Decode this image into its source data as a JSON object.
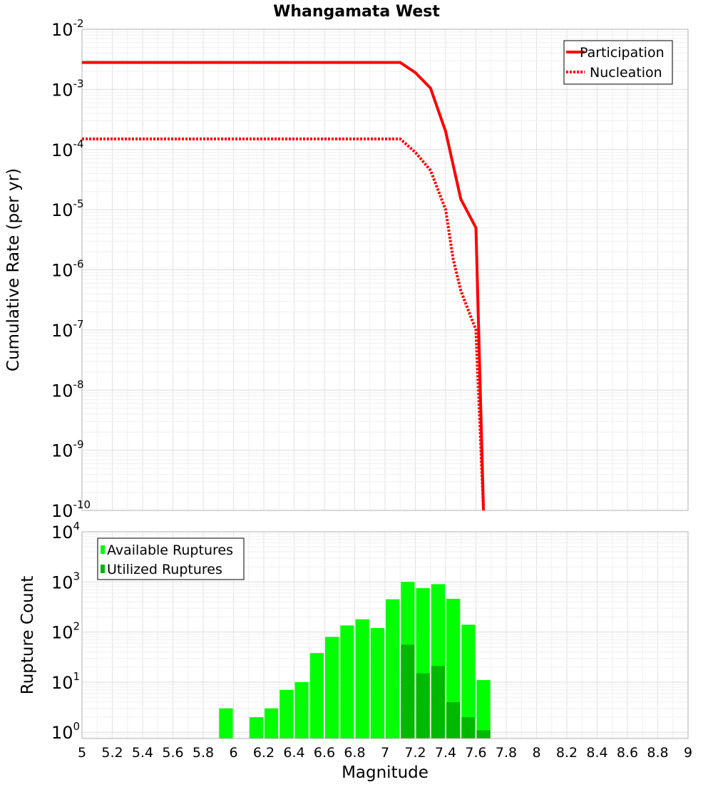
{
  "chart_data": [
    {
      "type": "line",
      "title": "Whangamata West",
      "xlabel": "",
      "ylabel": "Cumulative Rate (per yr)",
      "yscale": "log",
      "xlim": [
        5,
        9
      ],
      "ylim": [
        1e-10,
        0.01
      ],
      "grid": true,
      "legend_position": "top-right",
      "y_tick_labels": [
        {
          "base": "10",
          "exp": "-10",
          "value": 1e-10
        },
        {
          "base": "10",
          "exp": "-9",
          "value": 1e-09
        },
        {
          "base": "10",
          "exp": "-8",
          "value": 1e-08
        },
        {
          "base": "10",
          "exp": "-7",
          "value": 1e-07
        },
        {
          "base": "10",
          "exp": "-6",
          "value": 1e-06
        },
        {
          "base": "10",
          "exp": "-5",
          "value": 1e-05
        },
        {
          "base": "10",
          "exp": "-4",
          "value": 0.0001
        },
        {
          "base": "10",
          "exp": "-3",
          "value": 0.001
        },
        {
          "base": "10",
          "exp": "-2",
          "value": 0.01
        }
      ],
      "series": [
        {
          "name": "Participation",
          "color": "#ff0000",
          "style": "solid",
          "x": [
            5.0,
            7.1,
            7.2,
            7.3,
            7.4,
            7.5,
            7.6,
            7.65
          ],
          "y": [
            0.0028,
            0.0028,
            0.0019,
            0.00105,
            0.0002,
            1.5e-05,
            5e-06,
            1e-10
          ]
        },
        {
          "name": "Nucleation",
          "color": "#ff0000",
          "style": "dotted",
          "x": [
            5.0,
            7.1,
            7.2,
            7.3,
            7.4,
            7.45,
            7.5,
            7.6,
            7.65
          ],
          "y": [
            0.00015,
            0.00015,
            9e-05,
            4.5e-05,
            1e-05,
            1.5e-06,
            4.5e-07,
            1e-07,
            1e-10
          ]
        }
      ]
    },
    {
      "type": "bar",
      "title": "",
      "xlabel": "Magnitude",
      "ylabel": "Rupture Count",
      "yscale": "log",
      "xlim": [
        5,
        9
      ],
      "ylim": [
        0.75,
        10000
      ],
      "grid": true,
      "legend_position": "top-left",
      "bar_width": 0.1,
      "x_tick_labels": [
        "5",
        "5.2",
        "5.4",
        "5.6",
        "5.8",
        "6",
        "6.2",
        "6.4",
        "6.6",
        "6.8",
        "7",
        "7.2",
        "7.4",
        "7.6",
        "7.8",
        "8",
        "8.2",
        "8.4",
        "8.6",
        "8.8",
        "9"
      ],
      "y_tick_labels": [
        {
          "base": "10",
          "exp": "0",
          "value": 1
        },
        {
          "base": "10",
          "exp": "1",
          "value": 10
        },
        {
          "base": "10",
          "exp": "2",
          "value": 100
        },
        {
          "base": "10",
          "exp": "3",
          "value": 1000
        },
        {
          "base": "10",
          "exp": "4",
          "value": 10000
        }
      ],
      "series": [
        {
          "name": "Available Ruptures",
          "color": "#00ff00",
          "x": [
            5.95,
            6.15,
            6.25,
            6.35,
            6.45,
            6.55,
            6.65,
            6.75,
            6.85,
            6.95,
            7.05,
            7.15,
            7.25,
            7.35,
            7.45,
            7.55,
            7.65
          ],
          "values": [
            3,
            2,
            3,
            7,
            10,
            38,
            80,
            135,
            180,
            120,
            450,
            1000,
            750,
            900,
            460,
            140,
            11
          ]
        },
        {
          "name": "Utilized Ruptures",
          "color": "#00b800",
          "x": [
            7.15,
            7.25,
            7.35,
            7.45,
            7.55,
            7.65
          ],
          "values": [
            56,
            15,
            21,
            4,
            2,
            1.1
          ]
        }
      ]
    }
  ]
}
